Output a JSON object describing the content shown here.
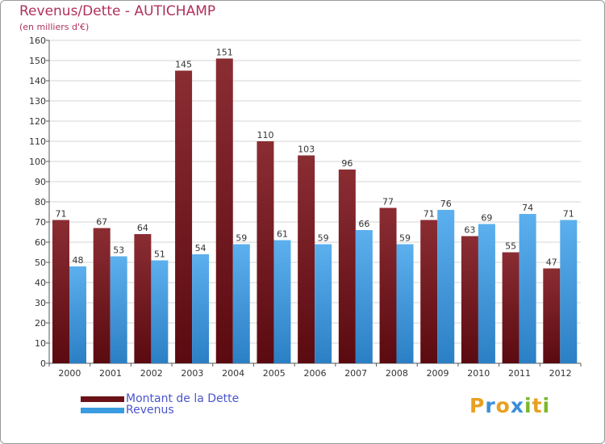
{
  "header": {
    "title": "Revenus/Dette - AUTICHAMP",
    "subtitle": "(en milliers d'€)"
  },
  "chart_data": {
    "type": "bar",
    "title": "Revenus/Dette - AUTICHAMP",
    "subtitle": "(en milliers d'€)",
    "xlabel": "",
    "ylabel": "",
    "ylim": [
      0,
      160
    ],
    "ytick_step": 10,
    "grid": true,
    "categories": [
      "2000",
      "2001",
      "2002",
      "2003",
      "2004",
      "2005",
      "2006",
      "2007",
      "2008",
      "2009",
      "2010",
      "2011",
      "2012"
    ],
    "series": [
      {
        "name": "Montant de la Dette",
        "color": "#7a1c22",
        "values": [
          71,
          67,
          64,
          145,
          151,
          110,
          103,
          96,
          77,
          71,
          63,
          55,
          47
        ]
      },
      {
        "name": "Revenus",
        "color": "#3b9be0",
        "values": [
          48,
          53,
          51,
          54,
          59,
          61,
          59,
          66,
          59,
          76,
          69,
          74,
          71
        ]
      }
    ],
    "legend_position": "bottom-left"
  },
  "legend": {
    "items": [
      {
        "label": "Montant de la Dette",
        "color": "#6a1218"
      },
      {
        "label": "Revenus",
        "color": "#3b9be0"
      }
    ]
  },
  "logo": {
    "letters": [
      "P",
      "r",
      "o",
      "x",
      "i",
      "t",
      "i"
    ],
    "colors": [
      "#e8a020",
      "#3a8fd8",
      "#e8a020",
      "#3a8fd8",
      "#7ab828",
      "#e8a020",
      "#7ab828"
    ]
  }
}
